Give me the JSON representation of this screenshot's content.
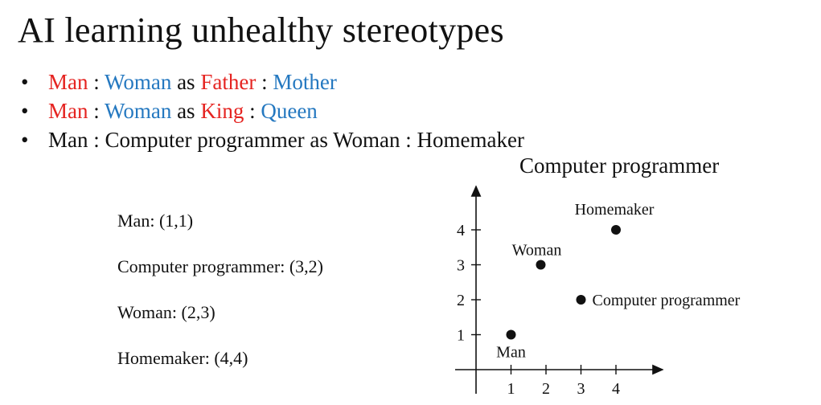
{
  "title": "AI learning unhealthy stereotypes",
  "bullets": [
    {
      "a": "Man",
      "sep1": " : ",
      "b": "Woman",
      "mid": " as ",
      "c": "Father",
      "sep2": " : ",
      "d": "Mother"
    },
    {
      "a": "Man",
      "sep1": " : ",
      "b": "Woman",
      "mid": " as ",
      "c": "King",
      "sep2": " : ",
      "d": "Queen"
    },
    {
      "text": "Man : Computer programmer as Woman : Homemaker"
    }
  ],
  "overflow_text": "Computer programmer",
  "coordinates": [
    "Man: (1,1)",
    "Computer programmer: (3,2)",
    "Woman: (2,3)",
    "Homemaker: (4,4)"
  ],
  "colors": {
    "red": "#e52421",
    "blue": "#2478c0"
  },
  "chart_data": {
    "type": "scatter",
    "title": "",
    "xlabel": "",
    "ylabel": "",
    "xlim": [
      0,
      5
    ],
    "ylim": [
      0,
      5
    ],
    "xticks": [
      1,
      2,
      3,
      4
    ],
    "yticks": [
      1,
      2,
      3,
      4
    ],
    "grid": false,
    "points": [
      {
        "label": "Man",
        "x": 1,
        "y": 1
      },
      {
        "label": "Woman",
        "x": 1.85,
        "y": 3
      },
      {
        "label": "Computer programmer",
        "x": 3,
        "y": 2
      },
      {
        "label": "Homemaker",
        "x": 4,
        "y": 4
      }
    ]
  }
}
